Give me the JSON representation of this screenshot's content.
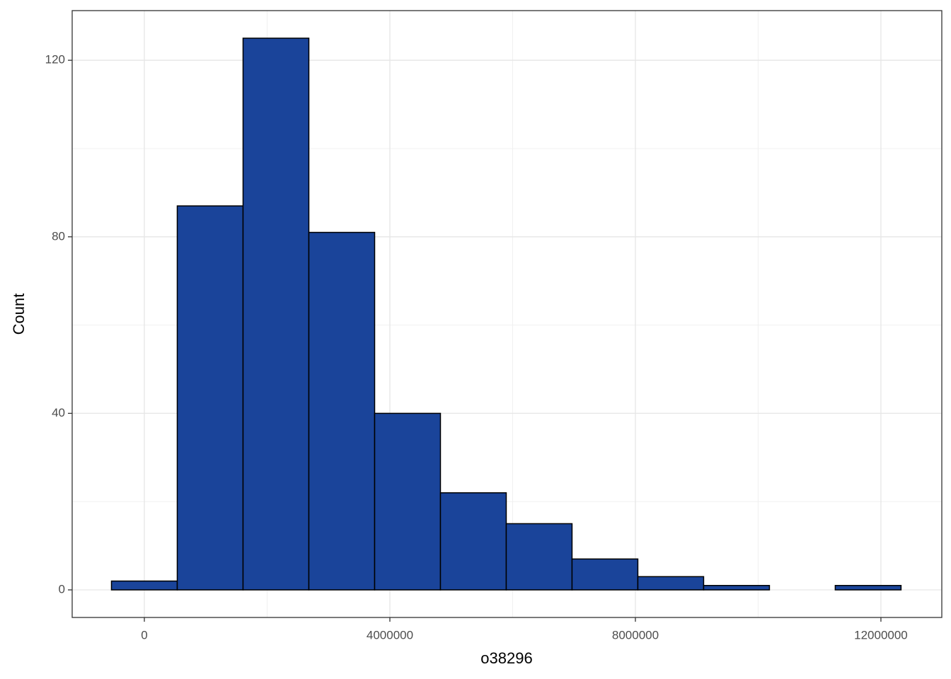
{
  "chart_data": {
    "type": "histogram",
    "x_label": "o38296",
    "y_label": "Count",
    "bins": [
      -536000,
      536000,
      1608000,
      2680000,
      3752000,
      4824000,
      5896000,
      6968000,
      8040000,
      9112000,
      10184000,
      11256000,
      12328000
    ],
    "values": [
      2,
      87,
      125,
      81,
      40,
      22,
      15,
      7,
      3,
      1,
      0,
      1
    ],
    "color": "#1a449a",
    "edge_color": "#000000",
    "xlim": [
      -1176000,
      12992000
    ],
    "xticks": [
      0,
      4000000,
      8000000,
      12000000
    ],
    "minor_xticks": [
      2000000,
      6000000,
      10000000
    ],
    "ylim": [
      -6.25,
      131.25
    ],
    "yticks": [
      0,
      40,
      80,
      120
    ],
    "minor_yticks": [
      20,
      60,
      100
    ],
    "grid": true
  }
}
